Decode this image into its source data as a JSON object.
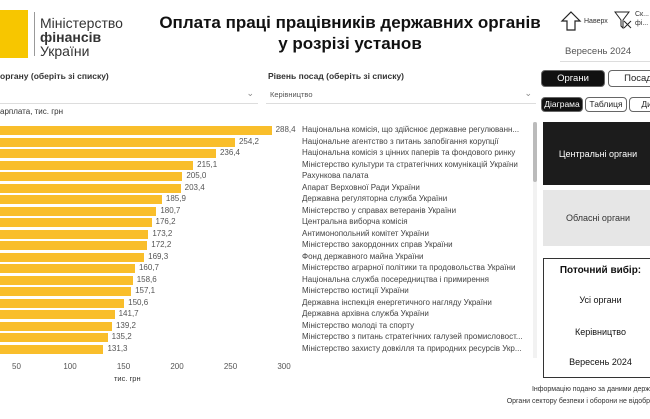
{
  "header": {
    "logo": {
      "line1": "Міністерство",
      "line2": "фінансів",
      "line3": "України"
    },
    "title_line1": "Оплата праці працівників державних органів",
    "title_line2": "у розрізі установ",
    "to_top_label": "Наверх",
    "reset_filters_label": "Ск...\nфі...",
    "period_select": "Вересень 2024"
  },
  "filters": {
    "organ_label": "органу (оберіть зі списку)",
    "organ_value": "",
    "level_label": "Рівень посад (оберіть зі списку)",
    "level_value": "Керівництво"
  },
  "toggles": {
    "organs": "Органи",
    "positions": "Посад",
    "view_tabs": [
      "Діаграма",
      "Таблиця",
      "Дин"
    ]
  },
  "categories_panel": {
    "central": "Центральні органи",
    "regional": "Обласні органи"
  },
  "selection": {
    "title": "Поточний вибір:",
    "organ": "Усі органи",
    "level": "Керівництво",
    "period": "Вересень 2024"
  },
  "footer": {
    "line1": "Інформацію подано за даними держ",
    "line2": "Органи сектору безпеки і оборони не відобр"
  },
  "chart_data": {
    "type": "bar",
    "orientation": "horizontal",
    "ylabel": "арплата, тис. грн",
    "xlabel": "тис. грн",
    "ticks": [
      "50",
      "100",
      "150",
      "200",
      "250",
      "300"
    ],
    "bar_color": "#f9be2b",
    "categories": [
      "Національна комісія, що здійснює державне регулюванн...",
      "Національне агентство з питань запобігання корупції",
      "Національна комісія з цінних паперів та фондового ринку",
      "Міністерство культури та стратегічних комунікацій України",
      "Рахункова палата",
      "Апарат Верховної Ради України",
      "Державна регуляторна служба України",
      "Міністерство у справах ветеранів України",
      "Центральна виборча комісія",
      "Антимонопольний комітет України",
      "Міністерство закордонних справ України",
      "Фонд державного майна України",
      "Міністерство аграрної політики та продовольства України",
      "Національна служба посередництва і примирення",
      "Міністерство юстиції України",
      "Державна інспекція енергетичного нагляду України",
      "Державна архівна служба України",
      "Міністерство молоді та спорту",
      "Міністерство з питань стратегічних галузей промисловост...",
      "Міністерство захисту довкілля та природних ресурсів Укр..."
    ],
    "values": [
      288.4,
      254.2,
      236.4,
      215.1,
      205.0,
      203.4,
      185.9,
      180.7,
      176.2,
      173.2,
      172.2,
      169.3,
      160.7,
      158.6,
      157.1,
      150.6,
      141.7,
      139.2,
      135.2,
      131.3
    ],
    "labels": [
      "288,4",
      "254,2",
      "236,4",
      "215,1",
      "205,0",
      "203,4",
      "185,9",
      "180,7",
      "176,2",
      "173,2",
      "172,2",
      "169,3",
      "160,7",
      "158,6",
      "157,1",
      "150,6",
      "141,7",
      "139,2",
      "135,2",
      "131,3"
    ]
  }
}
